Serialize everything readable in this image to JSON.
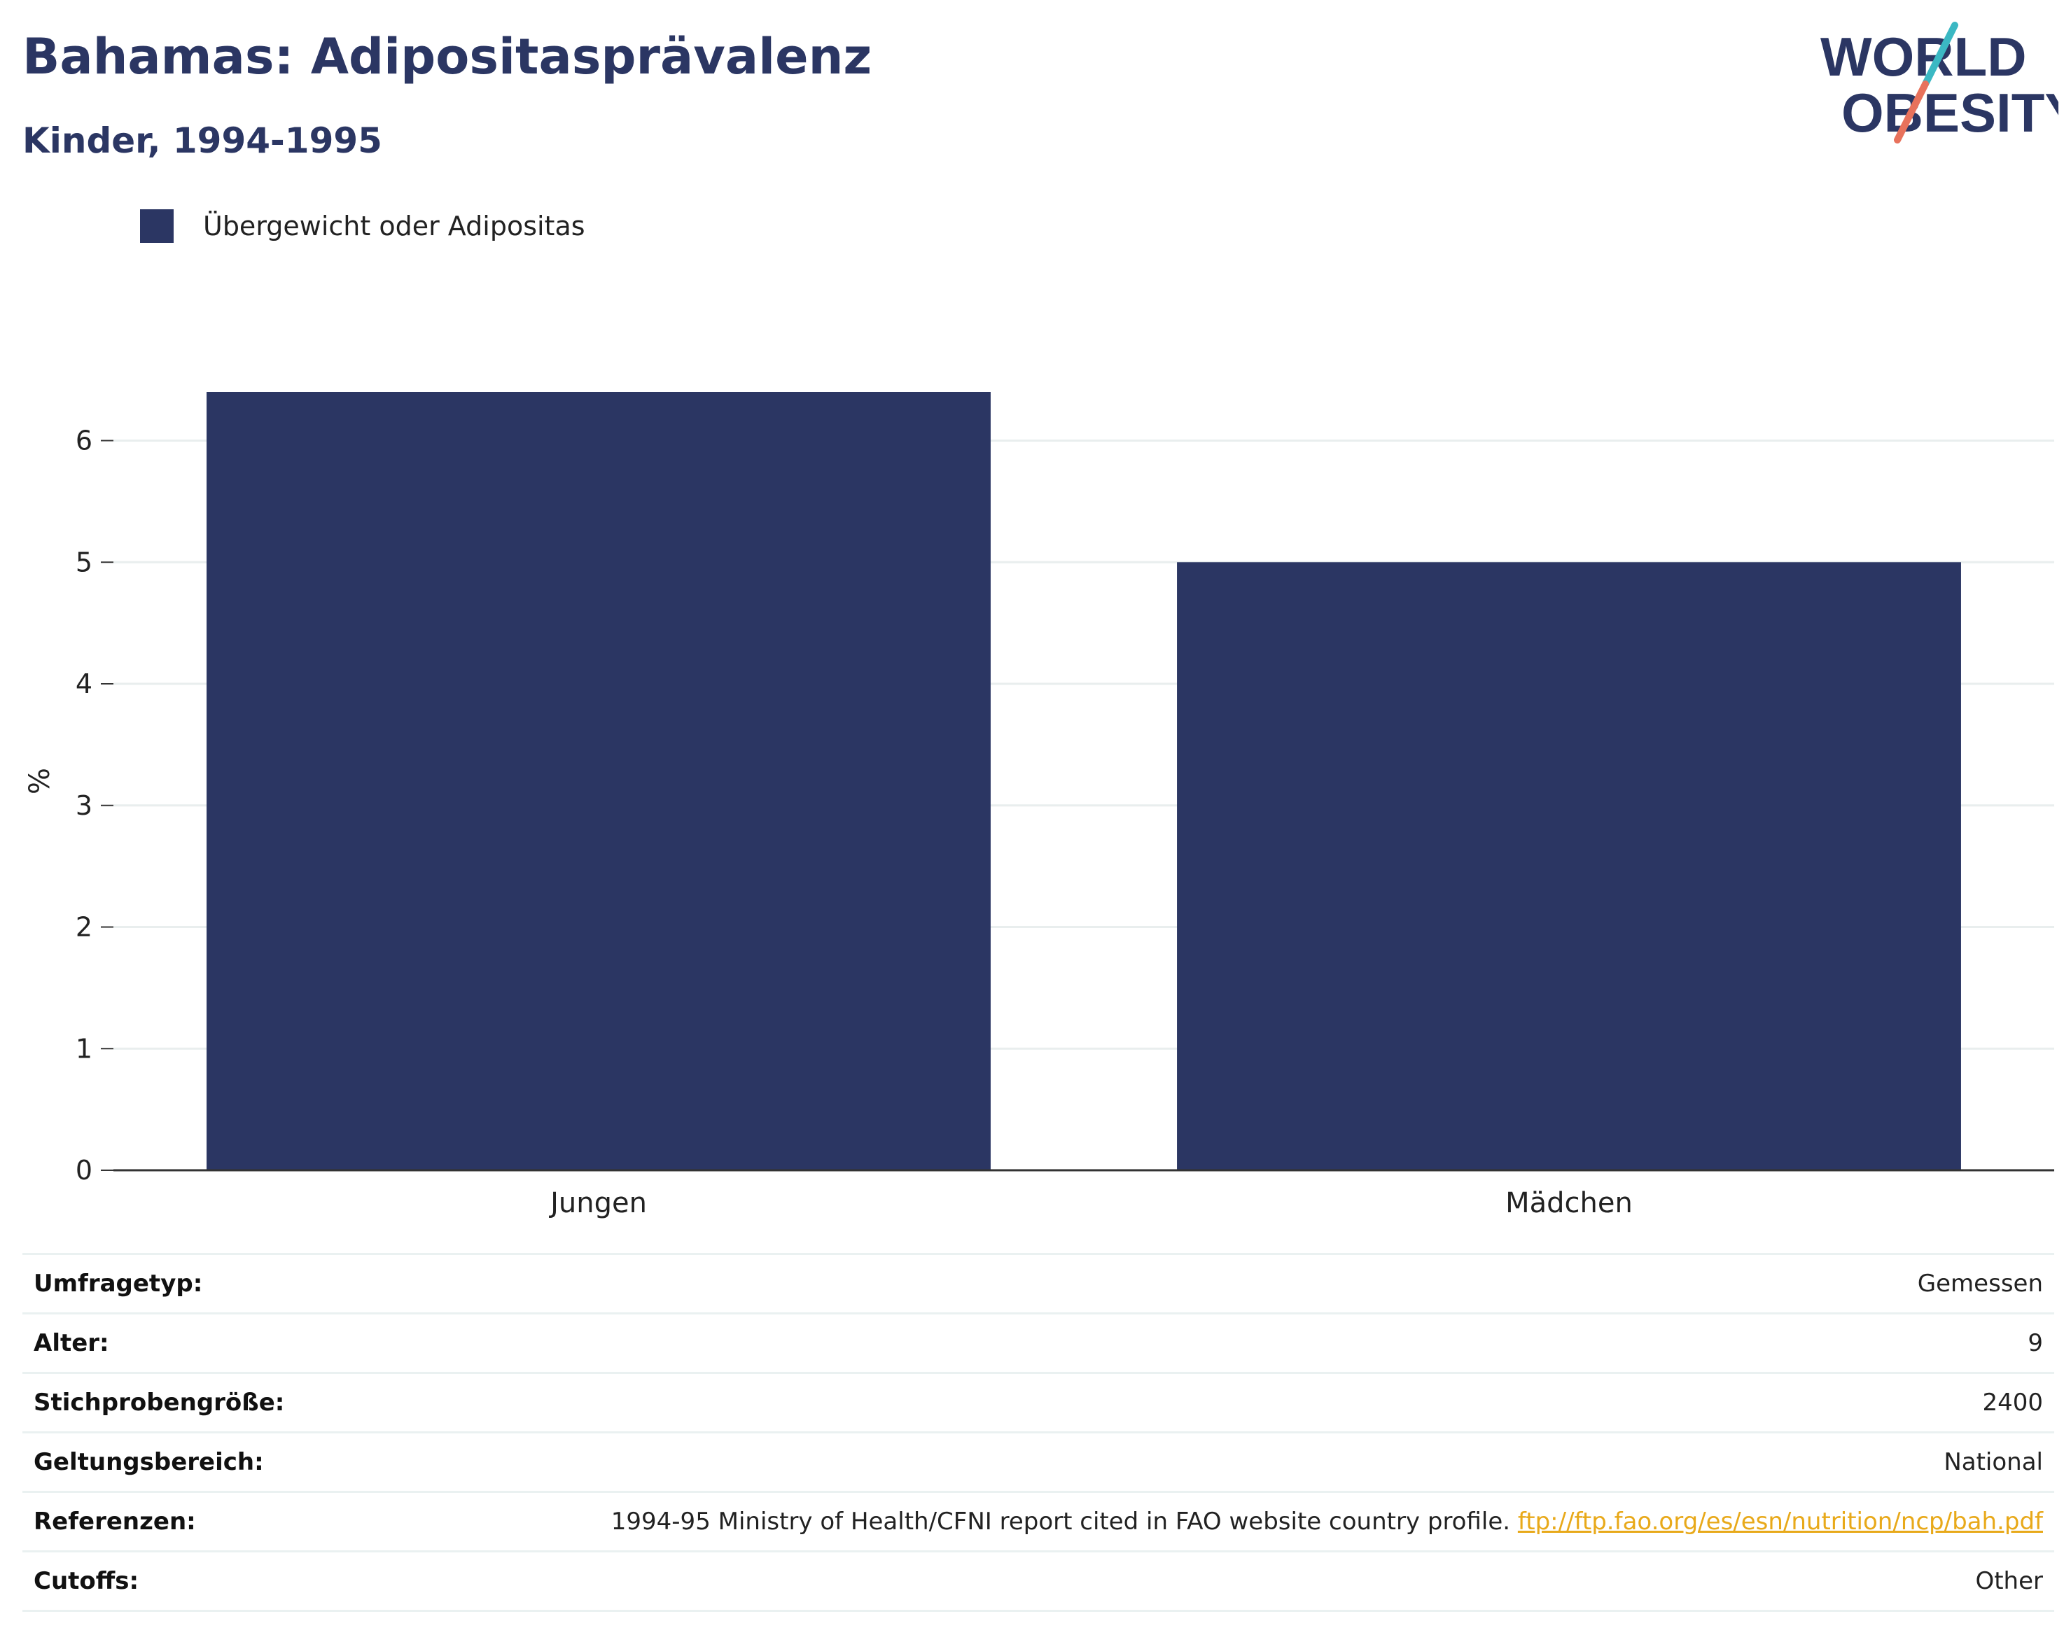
{
  "header": {
    "title": "Bahamas: Adipositasprävalenz",
    "subtitle": "Kinder, 1994-1995"
  },
  "logo": {
    "line1": "WORLD",
    "line2": "OBESITY",
    "icon": "world-obesity-logo",
    "colors": {
      "navy": "#2b3663",
      "teal": "#3bb8c3",
      "coral": "#e8725c"
    }
  },
  "legend": {
    "label": "Übergewicht oder Adipositas",
    "color": "#2b3663"
  },
  "chart_data": {
    "type": "bar",
    "categories": [
      "Jungen",
      "Mädchen"
    ],
    "series": [
      {
        "name": "Übergewicht oder Adipositas",
        "values": [
          6.4,
          5.0
        ],
        "color": "#2b3663"
      }
    ],
    "ylabel": "%",
    "xlabel": "",
    "ylim": [
      0,
      6.4
    ],
    "yticks": [
      0,
      1,
      2,
      3,
      4,
      5,
      6
    ],
    "grid": true,
    "legend_position": "top-left"
  },
  "info": {
    "rows": [
      {
        "key": "Umfragetyp:",
        "value": "Gemessen"
      },
      {
        "key": "Alter:",
        "value": "9"
      },
      {
        "key": "Stichprobengröße:",
        "value": "2400"
      },
      {
        "key": "Geltungsbereich:",
        "value": "National"
      },
      {
        "key": "Referenzen:",
        "value": "1994-95 Ministry of Health/CFNI report cited in FAO website country profile.",
        "link": "ftp://ftp.fao.org/es/esn/nutrition/ncp/bah.pdf"
      },
      {
        "key": "Cutoffs:",
        "value": "Other"
      }
    ]
  }
}
